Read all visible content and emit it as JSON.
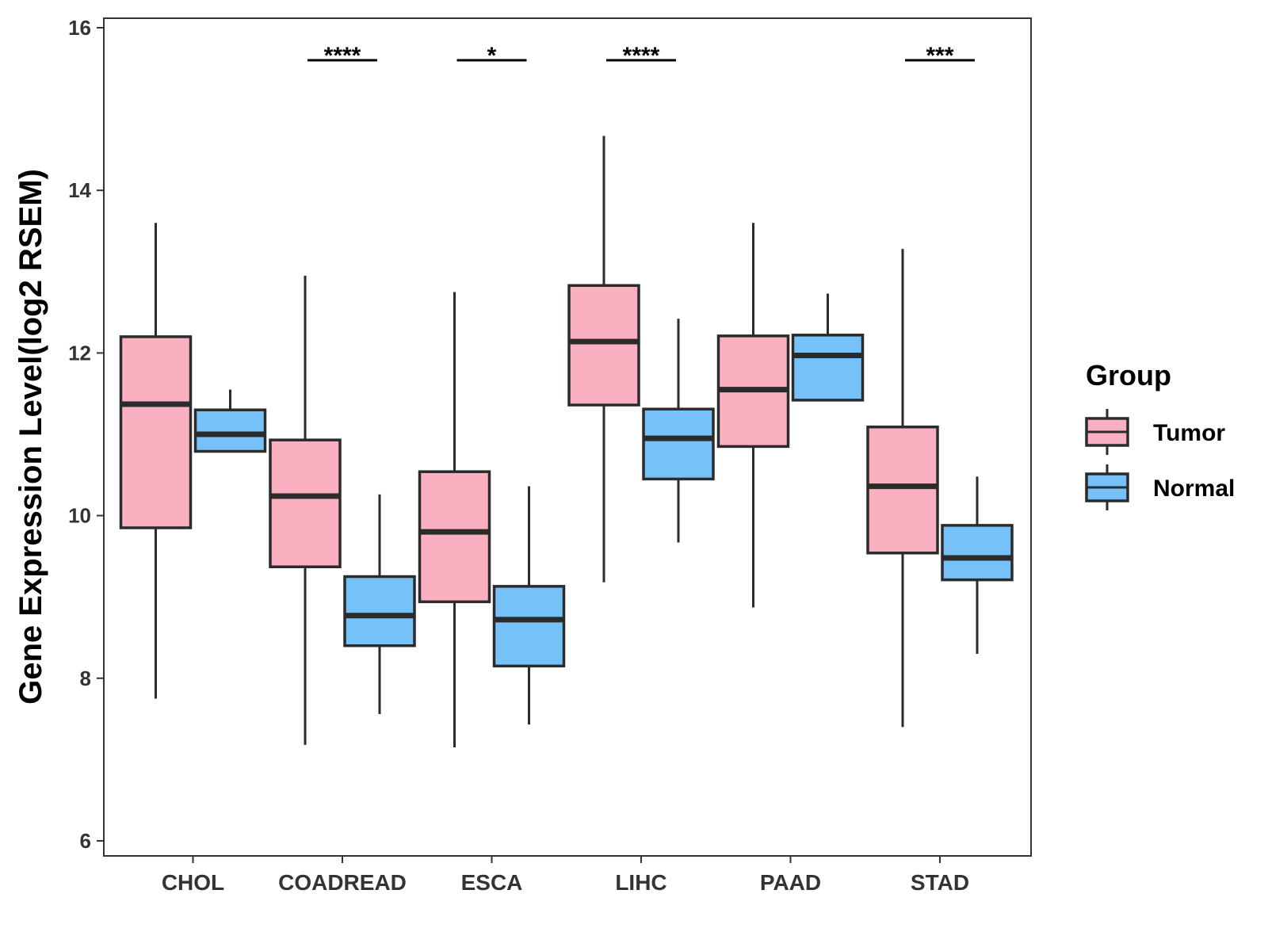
{
  "chart_data": {
    "type": "boxplot",
    "title": "",
    "xlabel": "",
    "ylabel": "Gene Expression Level(log2 RSEM)",
    "ylim": [
      5.8,
      16.25
    ],
    "yticks": [
      6,
      8,
      10,
      12,
      14,
      16
    ],
    "grid": false,
    "legend": {
      "title": "Group",
      "position": "right",
      "entries": [
        {
          "label": "Tumor",
          "color": "#FBB0C2"
        },
        {
          "label": "Normal",
          "color": "#76C1F8"
        }
      ]
    },
    "categories": [
      "CHOL",
      "COADREAD",
      "ESCA",
      "LIHC",
      "PAAD",
      "STAD"
    ],
    "series": [
      {
        "name": "Tumor",
        "color": "#FBB0C2",
        "boxes": [
          {
            "min": 7.75,
            "q1": 9.85,
            "median": 11.37,
            "q3": 12.2,
            "max": 13.6
          },
          {
            "min": 7.18,
            "q1": 9.37,
            "median": 10.24,
            "q3": 10.93,
            "max": 12.95
          },
          {
            "min": 7.15,
            "q1": 8.94,
            "median": 9.8,
            "q3": 10.54,
            "max": 12.75
          },
          {
            "min": 9.18,
            "q1": 11.36,
            "median": 12.14,
            "q3": 12.83,
            "max": 14.67
          },
          {
            "min": 8.87,
            "q1": 10.85,
            "median": 11.55,
            "q3": 12.21,
            "max": 13.6
          },
          {
            "min": 7.4,
            "q1": 9.54,
            "median": 10.36,
            "q3": 11.09,
            "max": 13.28
          }
        ]
      },
      {
        "name": "Normal",
        "color": "#76C1F8",
        "boxes": [
          {
            "min": 10.79,
            "q1": 10.79,
            "median": 11.0,
            "q3": 11.3,
            "max": 11.55
          },
          {
            "min": 7.56,
            "q1": 8.4,
            "median": 8.77,
            "q3": 9.25,
            "max": 10.26
          },
          {
            "min": 7.43,
            "q1": 8.15,
            "median": 8.72,
            "q3": 9.13,
            "max": 10.36
          },
          {
            "min": 9.67,
            "q1": 10.45,
            "median": 10.95,
            "q3": 11.31,
            "max": 12.42
          },
          {
            "min": 11.42,
            "q1": 11.42,
            "median": 11.97,
            "q3": 12.22,
            "max": 12.73
          },
          {
            "min": 8.3,
            "q1": 9.21,
            "median": 9.48,
            "q3": 9.88,
            "max": 10.48
          }
        ]
      }
    ],
    "significance": [
      {
        "category": "CHOL",
        "label": ""
      },
      {
        "category": "COADREAD",
        "label": "****"
      },
      {
        "category": "ESCA",
        "label": "*"
      },
      {
        "category": "LIHC",
        "label": "****"
      },
      {
        "category": "PAAD",
        "label": ""
      },
      {
        "category": "STAD",
        "label": "***"
      }
    ],
    "significance_y": 15.6
  }
}
